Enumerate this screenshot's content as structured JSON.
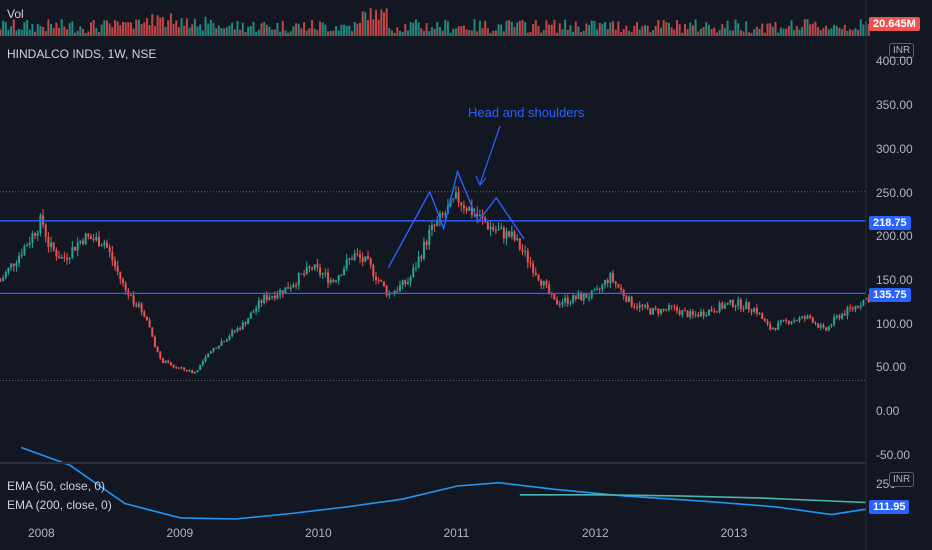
{
  "header": {
    "vol_label": "Vol",
    "symbol_label": "HINDALCO INDS, 1W, NSE",
    "vol_value": "20.645M",
    "currency": "INR"
  },
  "indicators": {
    "ema50_label": "EMA (50, close, 0)",
    "ema200_label": "EMA (200, close, 0)",
    "ema_value": "111.95",
    "ema_axis_top": "250",
    "currency": "INR"
  },
  "levels": {
    "resistance": 218.75,
    "resistance_label": "218.75",
    "support": 135.75,
    "support_label": "135.75",
    "dotted_upper": 252,
    "dotted_lower": 36
  },
  "annotation": {
    "text": "Head and shoulders"
  },
  "colors": {
    "background": "#131722",
    "up": "#26a69a",
    "down": "#ef5350",
    "level_line": "#2962ff",
    "ema50": "#2196f3",
    "ema200": "#4db6ac"
  },
  "chart_data": {
    "type": "candlestick",
    "title": "HINDALCO INDS, 1W, NSE",
    "x_labels": [
      "2008",
      "2009",
      "2010",
      "2011",
      "2012",
      "2013"
    ],
    "y_ticks": [
      "400.00",
      "350.00",
      "300.00",
      "250.00",
      "200.00",
      "150.00",
      "100.00",
      "50.00",
      "0.00",
      "-50.00"
    ],
    "ylim": [
      -50,
      400
    ],
    "price_anchors": [
      [
        2007.7,
        150
      ],
      [
        2007.9,
        195
      ],
      [
        2008.0,
        220
      ],
      [
        2008.05,
        190
      ],
      [
        2008.15,
        175
      ],
      [
        2008.3,
        200
      ],
      [
        2008.45,
        195
      ],
      [
        2008.6,
        140
      ],
      [
        2008.75,
        110
      ],
      [
        2008.85,
        60
      ],
      [
        2008.95,
        52
      ],
      [
        2009.1,
        45
      ],
      [
        2009.25,
        75
      ],
      [
        2009.45,
        100
      ],
      [
        2009.6,
        130
      ],
      [
        2009.75,
        140
      ],
      [
        2009.95,
        165
      ],
      [
        2010.1,
        150
      ],
      [
        2010.25,
        180
      ],
      [
        2010.35,
        170
      ],
      [
        2010.5,
        135
      ],
      [
        2010.65,
        150
      ],
      [
        2010.8,
        205
      ],
      [
        2010.9,
        225
      ],
      [
        2011.0,
        245
      ],
      [
        2011.1,
        230
      ],
      [
        2011.25,
        210
      ],
      [
        2011.4,
        200
      ],
      [
        2011.55,
        165
      ],
      [
        2011.7,
        125
      ],
      [
        2011.85,
        130
      ],
      [
        2012.0,
        135
      ],
      [
        2012.1,
        155
      ],
      [
        2012.25,
        125
      ],
      [
        2012.4,
        115
      ],
      [
        2012.55,
        118
      ],
      [
        2012.7,
        110
      ],
      [
        2012.85,
        118
      ],
      [
        2013.0,
        125
      ],
      [
        2013.15,
        118
      ],
      [
        2013.25,
        95
      ],
      [
        2013.4,
        105
      ],
      [
        2013.55,
        108
      ],
      [
        2013.65,
        92
      ],
      [
        2013.75,
        110
      ],
      [
        2013.85,
        118
      ],
      [
        2013.95,
        130
      ]
    ],
    "head_and_shoulders": [
      [
        2010.5,
        165
      ],
      [
        2010.8,
        252
      ],
      [
        2010.9,
        210
      ],
      [
        2011.0,
        275
      ],
      [
        2011.15,
        218
      ],
      [
        2011.28,
        245
      ],
      [
        2011.48,
        198
      ]
    ],
    "ema50": [
      [
        2007.85,
        168
      ],
      [
        2008.2,
        152
      ],
      [
        2008.6,
        117
      ],
      [
        2009.0,
        104
      ],
      [
        2009.4,
        103
      ],
      [
        2009.8,
        108
      ],
      [
        2010.2,
        114
      ],
      [
        2010.6,
        121
      ],
      [
        2011.0,
        133
      ],
      [
        2011.3,
        136
      ],
      [
        2011.7,
        130
      ],
      [
        2012.2,
        124
      ],
      [
        2012.8,
        119
      ],
      [
        2013.3,
        114
      ],
      [
        2013.7,
        107
      ],
      [
        2013.95,
        111.95
      ]
    ],
    "ema200": [
      [
        2011.45,
        125
      ],
      [
        2012.0,
        125
      ],
      [
        2012.6,
        124
      ],
      [
        2013.2,
        122
      ],
      [
        2013.95,
        118
      ]
    ]
  }
}
